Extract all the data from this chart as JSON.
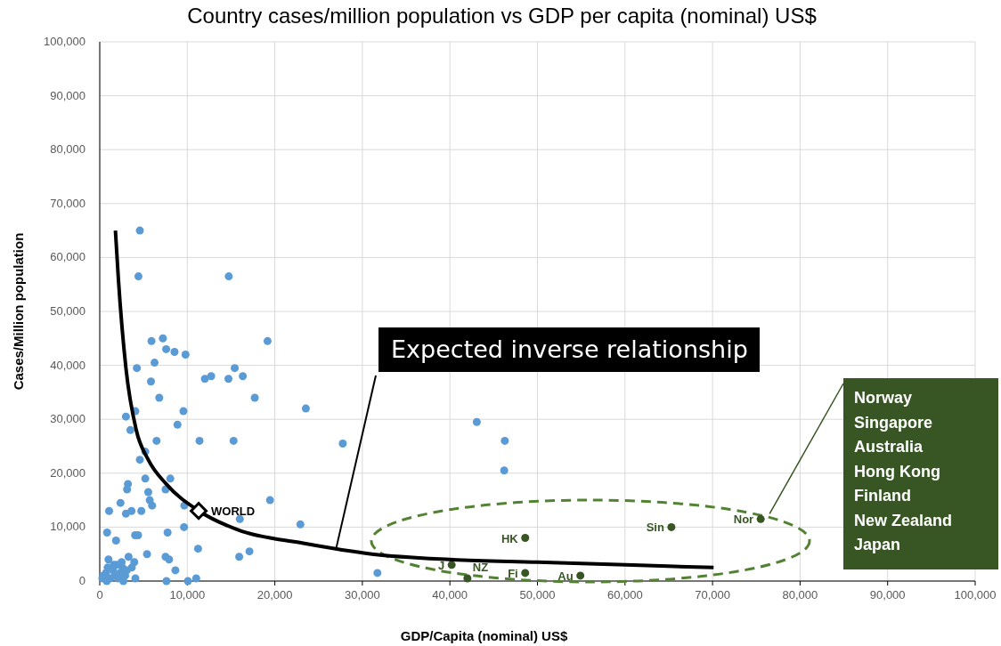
{
  "chart_data": {
    "type": "scatter",
    "title": "Country cases/million population vs GDP per capita (nominal) US$",
    "xlabel": "GDP/Capita (nominal)  US$",
    "ylabel": "Cases/Million population",
    "xlim": [
      0,
      100000
    ],
    "ylim": [
      0,
      100000
    ],
    "xticks": [
      {
        "value": 0,
        "label": "0"
      },
      {
        "value": 10000,
        "label": "10,000"
      },
      {
        "value": 20000,
        "label": "20,000"
      },
      {
        "value": 30000,
        "label": "30,000"
      },
      {
        "value": 40000,
        "label": "40,000"
      },
      {
        "value": 50000,
        "label": "50,000"
      },
      {
        "value": 60000,
        "label": "60,000"
      },
      {
        "value": 70000,
        "label": "70,000"
      },
      {
        "value": 80000,
        "label": "80,000"
      },
      {
        "value": 90000,
        "label": "90,000"
      },
      {
        "value": 100000,
        "label": "100,000"
      }
    ],
    "yticks": [
      {
        "value": 0,
        "label": "0"
      },
      {
        "value": 10000,
        "label": "10,000"
      },
      {
        "value": 20000,
        "label": "20,000"
      },
      {
        "value": 30000,
        "label": "30,000"
      },
      {
        "value": 40000,
        "label": "40,000"
      },
      {
        "value": 50000,
        "label": "50,000"
      },
      {
        "value": 60000,
        "label": "60,000"
      },
      {
        "value": 70000,
        "label": "70,000"
      },
      {
        "value": 80000,
        "label": "80,000"
      },
      {
        "value": 90000,
        "label": "90,000"
      },
      {
        "value": 100000,
        "label": "100,000"
      }
    ],
    "grid": true,
    "legend": false,
    "marker": "circle",
    "series": [
      {
        "color": "#5b9bd5",
        "x": [
          4580,
          4420,
          14740,
          19170,
          5910,
          7210,
          7590,
          8540,
          9800,
          6260,
          4240,
          12010,
          12730,
          14700,
          15420,
          16340,
          5850,
          17710,
          6800,
          2990,
          4070,
          9560,
          3500,
          8880,
          6490,
          11400,
          15290,
          5200,
          4580,
          5200,
          8060,
          3220,
          3120,
          5540,
          7520,
          5710,
          5980,
          2370,
          19450,
          1070,
          2990,
          3630,
          4750,
          9660,
          16000,
          9630,
          22920,
          840,
          1860,
          4040,
          4380,
          7750,
          11230,
          5400,
          3290,
          3940,
          3660,
          7520,
          7920,
          15930,
          17100,
          8640,
          4070,
          7620,
          10070,
          11020,
          23540,
          27760,
          31720,
          43070,
          46270,
          46200,
          300,
          700,
          900,
          1500,
          1700,
          1900,
          2100,
          2300,
          2500,
          2700,
          2900,
          3100,
          800,
          1200,
          1600,
          400,
          1000,
          2600
        ],
        "values": [
          65000,
          56500,
          56500,
          44500,
          44500,
          45000,
          43000,
          42500,
          42000,
          40500,
          39500,
          37500,
          38000,
          37500,
          39500,
          38000,
          37000,
          34000,
          34000,
          30500,
          31500,
          31500,
          28000,
          29000,
          26000,
          26000,
          26000,
          24000,
          22500,
          19000,
          19000,
          18000,
          17000,
          16500,
          17000,
          15000,
          14000,
          14500,
          15000,
          13000,
          12500,
          13000,
          13000,
          14000,
          11500,
          10000,
          10500,
          9000,
          7500,
          8500,
          8500,
          9000,
          6000,
          5000,
          4500,
          3500,
          2500,
          4500,
          4000,
          4500,
          5500,
          2000,
          500,
          0,
          0,
          500,
          32000,
          25500,
          1500,
          29500,
          26000,
          20500,
          500,
          1500,
          2500,
          2000,
          1000,
          3000,
          500,
          1500,
          3500,
          0,
          1000,
          2000,
          0,
          500,
          3000,
          1000,
          4000,
          2500
        ]
      },
      {
        "color": "#375623",
        "x": [
          75500,
          65300,
          48600,
          48600,
          54900,
          40200,
          42000
        ],
        "values": [
          11500,
          10000,
          8000,
          1500,
          1000,
          3000,
          500
        ],
        "value_labels": [
          "Nor",
          "Sin",
          "HK",
          "Fi",
          "Au",
          "J",
          "NZ"
        ]
      },
      {
        "type": "line",
        "color": "#000000",
        "marker": "none",
        "x": [
          1790,
          2130,
          2990,
          4170,
          5540,
          7590,
          11330,
          15770,
          23260,
          31100,
          39960,
          49980,
          60070,
          70120
        ],
        "values": [
          65000,
          56000,
          39500,
          28000,
          22500,
          18000,
          13000,
          9500,
          7000,
          5000,
          4000,
          3500,
          3000,
          2500
        ]
      },
      {
        "color": "#000000",
        "marker": "diamond",
        "x": [
          11300
        ],
        "values": [
          13000
        ],
        "value_labels": [
          "WORLD"
        ]
      }
    ],
    "annotations": [
      {
        "text": "Expected inverse relationship",
        "x": 27000,
        "y": 6000
      },
      "Norway\nSingapore\nAustralia\nHong Kong\nFinland\nNew Zealand\nJapan"
    ]
  }
}
